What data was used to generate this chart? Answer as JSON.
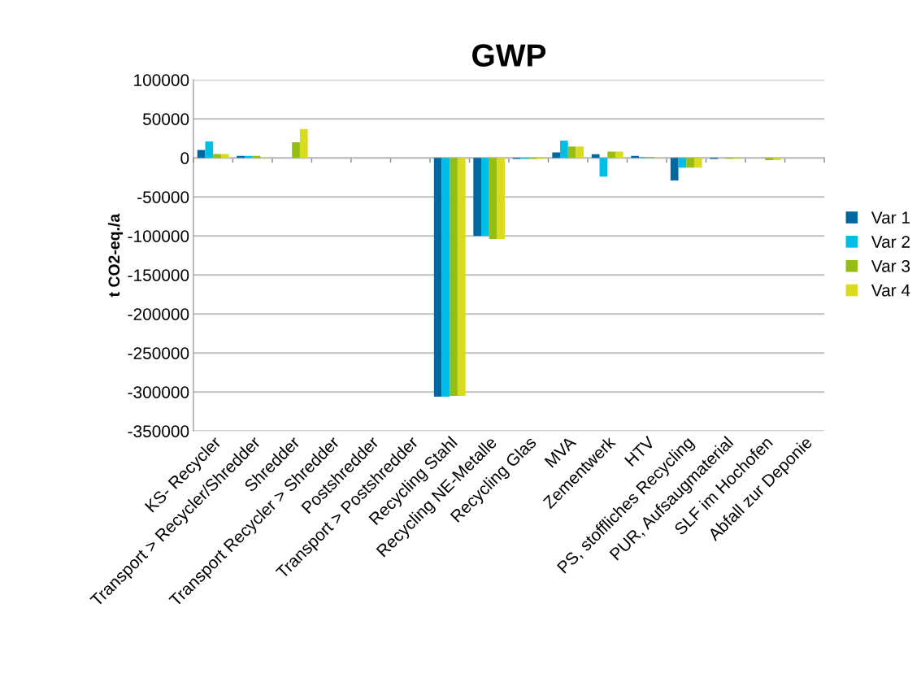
{
  "chart_data": {
    "type": "bar",
    "title": "GWP",
    "ylabel": "t CO2-eq./a",
    "categories": [
      "KS- Recycler",
      "Transport > Recycler/Shredder",
      "Shredder",
      "Transport Recycler > Shredder",
      "Postshredder",
      "Transport > Postshredder",
      "Recycling Stahl",
      "Recycling NE-Metalle",
      "Recycling Glas",
      "MVA",
      "Zementwerk",
      "HTV",
      "PS, stoffliches Recycling",
      "PUR, Aufsaugmaterial",
      "SLF im Hochofen",
      "Abfall zur Deponie"
    ],
    "series": [
      {
        "name": "Var 1",
        "color": "#0068a0",
        "values": [
          10000,
          2500,
          0,
          0,
          0,
          0,
          -306000,
          -100000,
          -1500,
          7000,
          4500,
          2500,
          -29000,
          -1500,
          0,
          0
        ]
      },
      {
        "name": "Var 2",
        "color": "#00bde6",
        "values": [
          21000,
          2500,
          0,
          0,
          0,
          0,
          -306000,
          -100000,
          -1500,
          22000,
          -24000,
          1000,
          -12500,
          0,
          0,
          0
        ]
      },
      {
        "name": "Var 3",
        "color": "#95bd14",
        "values": [
          5000,
          2500,
          20000,
          0,
          0,
          0,
          -305000,
          -104000,
          -1500,
          14500,
          8000,
          1000,
          -12500,
          -1000,
          -3000,
          0
        ]
      },
      {
        "name": "Var 4",
        "color": "#d9dc1e",
        "values": [
          5000,
          1000,
          37000,
          0,
          0,
          0,
          -305000,
          -104000,
          -1500,
          14500,
          8000,
          1000,
          -12500,
          -1000,
          -3000,
          0
        ]
      }
    ],
    "ylim": [
      -350000,
      100000
    ],
    "yticks": [
      -350000,
      -300000,
      -250000,
      -200000,
      -150000,
      -100000,
      -50000,
      0,
      50000,
      100000
    ],
    "grid": "y",
    "legend": "right"
  }
}
